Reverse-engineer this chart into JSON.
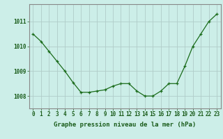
{
  "x": [
    0,
    1,
    2,
    3,
    4,
    5,
    6,
    7,
    8,
    9,
    10,
    11,
    12,
    13,
    14,
    15,
    16,
    17,
    18,
    19,
    20,
    21,
    22,
    23
  ],
  "y": [
    1010.5,
    1010.2,
    1009.8,
    1009.4,
    1009.0,
    1008.55,
    1008.15,
    1008.15,
    1008.2,
    1008.25,
    1008.4,
    1008.5,
    1008.5,
    1008.2,
    1008.0,
    1008.0,
    1008.2,
    1008.5,
    1008.5,
    1009.2,
    1010.0,
    1010.5,
    1011.0,
    1011.3
  ],
  "line_color": "#1a6b1a",
  "marker": "+",
  "marker_size": 3,
  "background_color": "#cceee8",
  "grid_color": "#b0ccc8",
  "xlabel": "Graphe pression niveau de la mer (hPa)",
  "ylim": [
    1007.5,
    1011.7
  ],
  "yticks": [
    1008,
    1009,
    1010,
    1011
  ],
  "xticks": [
    0,
    1,
    2,
    3,
    4,
    5,
    6,
    7,
    8,
    9,
    10,
    11,
    12,
    13,
    14,
    15,
    16,
    17,
    18,
    19,
    20,
    21,
    22,
    23
  ],
  "xlabel_fontsize": 6.5,
  "tick_fontsize": 5.5,
  "tick_color": "#1a5c1a",
  "spine_color": "#888888"
}
